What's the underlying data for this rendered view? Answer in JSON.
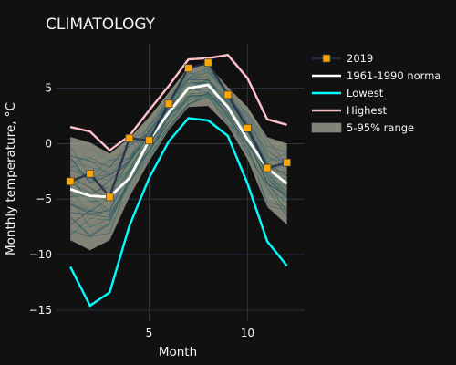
{
  "chart_data": {
    "type": "line",
    "title": "CLIMATOLOGY",
    "xlabel": "Month",
    "ylabel": "Monthly temperature, °C",
    "xlim": [
      0.3,
      12.9
    ],
    "ylim": [
      -16,
      9
    ],
    "xticks": [
      5,
      10
    ],
    "yticks": [
      -15,
      -10,
      -5,
      0,
      5
    ],
    "grid": true,
    "legend_position": "top-right",
    "colors": {
      "background": "#111111",
      "grid": "#283442",
      "y2019": "#ffa500",
      "normal": "#ffffff",
      "lowest": "#00ffff",
      "highest": "#ffc0cb",
      "range_fill": "#c8c8b4"
    },
    "x": [
      1,
      2,
      3,
      4,
      5,
      6,
      7,
      8,
      9,
      10,
      11,
      12
    ],
    "series": [
      {
        "name": "2019",
        "values": [
          -3.4,
          -2.7,
          -4.8,
          0.5,
          0.3,
          3.6,
          6.8,
          7.3,
          4.4,
          1.4,
          -2.2,
          -1.7
        ]
      },
      {
        "name": "1961-1990 norma",
        "values": [
          -4.1,
          -4.7,
          -4.8,
          -3.1,
          0.3,
          2.8,
          5.0,
          5.3,
          3.3,
          0.4,
          -2.2,
          -3.6
        ]
      },
      {
        "name": "Lowest",
        "values": [
          -11.1,
          -14.6,
          -13.4,
          -7.4,
          -3.1,
          0.2,
          2.3,
          2.1,
          0.7,
          -3.6,
          -8.8,
          -11.0
        ]
      },
      {
        "name": "Highest",
        "values": [
          1.5,
          1.1,
          -0.6,
          0.7,
          3.0,
          5.2,
          7.6,
          7.7,
          8.0,
          5.9,
          2.2,
          1.7
        ]
      }
    ],
    "range_band": {
      "name": "5-95% range",
      "low": [
        -8.7,
        -9.6,
        -8.7,
        -4.8,
        -1.6,
        1.2,
        3.3,
        3.4,
        1.6,
        -1.4,
        -5.7,
        -7.3
      ],
      "high": [
        0.6,
        0.1,
        -0.9,
        0.5,
        2.4,
        4.6,
        6.9,
        7.1,
        5.1,
        3.3,
        0.6,
        0.0
      ]
    }
  }
}
